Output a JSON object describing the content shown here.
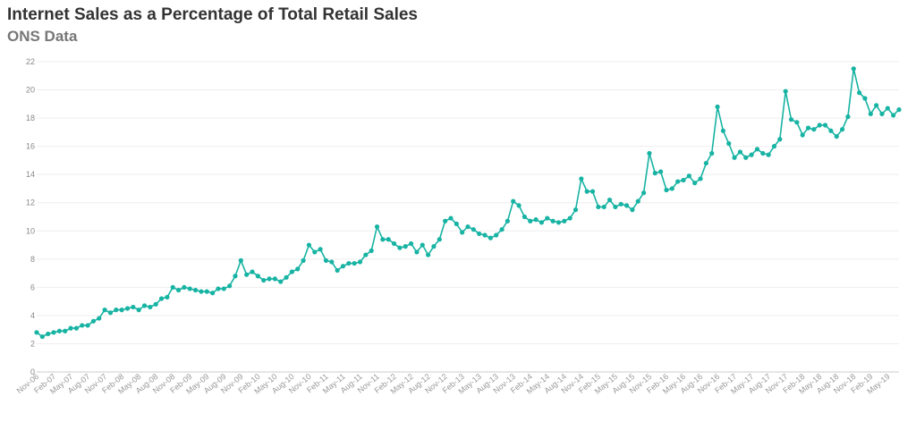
{
  "chart_data": {
    "type": "line",
    "title": "Internet Sales as a Percentage of Total Retail Sales",
    "subtitle": "ONS Data",
    "xlabel": "",
    "ylabel": "",
    "ylim": [
      0,
      22
    ],
    "yticks": [
      0,
      2,
      4,
      6,
      8,
      10,
      12,
      14,
      16,
      18,
      20,
      22
    ],
    "grid": true,
    "legend": "none",
    "series": [
      {
        "color": "#17b3a3",
        "x": [
          "Nov-06",
          "Dec-06",
          "Jan-07",
          "Feb-07",
          "Mar-07",
          "Apr-07",
          "May-07",
          "Jun-07",
          "Jul-07",
          "Aug-07",
          "Sep-07",
          "Oct-07",
          "Nov-07",
          "Dec-07",
          "Jan-08",
          "Feb-08",
          "Mar-08",
          "Apr-08",
          "May-08",
          "Jun-08",
          "Jul-08",
          "Aug-08",
          "Sep-08",
          "Oct-08",
          "Nov-08",
          "Dec-08",
          "Jan-09",
          "Feb-09",
          "Mar-09",
          "Apr-09",
          "May-09",
          "Jun-09",
          "Jul-09",
          "Aug-09",
          "Sep-09",
          "Oct-09",
          "Nov-09",
          "Dec-09",
          "Jan-10",
          "Feb-10",
          "Mar-10",
          "Apr-10",
          "May-10",
          "Jun-10",
          "Jul-10",
          "Aug-10",
          "Sep-10",
          "Oct-10",
          "Nov-10",
          "Dec-10",
          "Jan-11",
          "Feb-11",
          "Mar-11",
          "Apr-11",
          "May-11",
          "Jun-11",
          "Jul-11",
          "Aug-11",
          "Sep-11",
          "Oct-11",
          "Nov-11",
          "Dec-11",
          "Jan-12",
          "Feb-12",
          "Mar-12",
          "Apr-12",
          "May-12",
          "Jun-12",
          "Jul-12",
          "Aug-12",
          "Sep-12",
          "Oct-12",
          "Nov-12",
          "Dec-12",
          "Jan-13",
          "Feb-13",
          "Mar-13",
          "Apr-13",
          "May-13",
          "Jun-13",
          "Jul-13",
          "Aug-13",
          "Sep-13",
          "Oct-13",
          "Nov-13",
          "Dec-13",
          "Jan-14",
          "Feb-14",
          "Mar-14",
          "Apr-14",
          "May-14",
          "Jun-14",
          "Jul-14",
          "Aug-14",
          "Sep-14",
          "Oct-14",
          "Nov-14",
          "Dec-14",
          "Jan-15",
          "Feb-15",
          "Mar-15",
          "Apr-15",
          "May-15",
          "Jun-15",
          "Jul-15",
          "Aug-15",
          "Sep-15",
          "Oct-15",
          "Nov-15",
          "Dec-15",
          "Jan-16",
          "Feb-16",
          "Mar-16",
          "Apr-16",
          "May-16",
          "Jun-16",
          "Jul-16",
          "Aug-16",
          "Sep-16",
          "Oct-16",
          "Nov-16",
          "Dec-16",
          "Jan-17",
          "Feb-17",
          "Mar-17",
          "Apr-17",
          "May-17",
          "Jun-17",
          "Jul-17",
          "Aug-17",
          "Sep-17",
          "Oct-17",
          "Nov-17",
          "Dec-17",
          "Jan-18",
          "Feb-18",
          "Mar-18",
          "Apr-18",
          "May-18",
          "Jun-18",
          "Jul-18",
          "Aug-18",
          "Sep-18",
          "Oct-18",
          "Nov-18",
          "Dec-18",
          "Jan-19",
          "Feb-19",
          "Mar-19",
          "Apr-19",
          "May-19",
          "Jun-19",
          "Jul-19"
        ],
        "values": [
          2.8,
          2.5,
          2.7,
          2.8,
          2.9,
          2.9,
          3.1,
          3.1,
          3.3,
          3.3,
          3.6,
          3.8,
          4.4,
          4.2,
          4.4,
          4.4,
          4.5,
          4.6,
          4.4,
          4.7,
          4.6,
          4.8,
          5.2,
          5.3,
          6.0,
          5.8,
          6.0,
          5.9,
          5.8,
          5.7,
          5.7,
          5.6,
          5.9,
          5.9,
          6.1,
          6.8,
          7.9,
          6.9,
          7.1,
          6.8,
          6.5,
          6.6,
          6.6,
          6.4,
          6.7,
          7.1,
          7.3,
          7.9,
          9.0,
          8.5,
          8.7,
          7.9,
          7.8,
          7.2,
          7.5,
          7.7,
          7.7,
          7.8,
          8.3,
          8.6,
          10.3,
          9.4,
          9.4,
          9.1,
          8.8,
          8.9,
          9.1,
          8.5,
          9.0,
          8.3,
          8.9,
          9.4,
          10.7,
          10.9,
          10.5,
          9.9,
          10.3,
          10.1,
          9.8,
          9.7,
          9.5,
          9.7,
          10.1,
          10.7,
          12.1,
          11.8,
          11.0,
          10.7,
          10.8,
          10.6,
          10.9,
          10.7,
          10.6,
          10.7,
          10.9,
          11.5,
          13.7,
          12.8,
          12.8,
          11.7,
          11.7,
          12.2,
          11.7,
          11.9,
          11.8,
          11.5,
          12.1,
          12.7,
          15.5,
          14.1,
          14.2,
          12.9,
          13.0,
          13.5,
          13.6,
          13.9,
          13.4,
          13.7,
          14.8,
          15.5,
          18.8,
          17.1,
          16.2,
          15.2,
          15.6,
          15.2,
          15.4,
          15.8,
          15.5,
          15.4,
          16.0,
          16.5,
          19.9,
          17.9,
          17.7,
          16.8,
          17.3,
          17.2,
          17.5,
          17.5,
          17.1,
          16.7,
          17.2,
          18.1,
          21.5,
          19.8,
          19.4,
          18.3,
          18.9,
          18.3,
          18.7,
          18.2,
          18.6
        ]
      }
    ],
    "x_tick_labels": [
      "Nov-06",
      "Feb-07",
      "May-07",
      "Aug-07",
      "Nov-07",
      "Feb-08",
      "May-08",
      "Aug-08",
      "Nov-08",
      "Feb-09",
      "May-09",
      "Aug-09",
      "Nov-09",
      "Feb-10",
      "May-10",
      "Aug-10",
      "Nov-10",
      "Feb-11",
      "May-11",
      "Aug-11",
      "Nov-11",
      "Feb-12",
      "May-12",
      "Aug-12",
      "Nov-12",
      "Feb-13",
      "May-13",
      "Aug-13",
      "Nov-13",
      "Feb-14",
      "May-14",
      "Aug-14",
      "Nov-14",
      "Feb-15",
      "May-15",
      "Aug-15",
      "Nov-15",
      "Feb-16",
      "May-16",
      "Aug-16",
      "Nov-16",
      "Feb-17",
      "May-17",
      "Aug-17",
      "Nov-17",
      "Feb-18",
      "May-18",
      "Aug-18",
      "Nov-18",
      "Feb-19",
      "May-19"
    ]
  }
}
